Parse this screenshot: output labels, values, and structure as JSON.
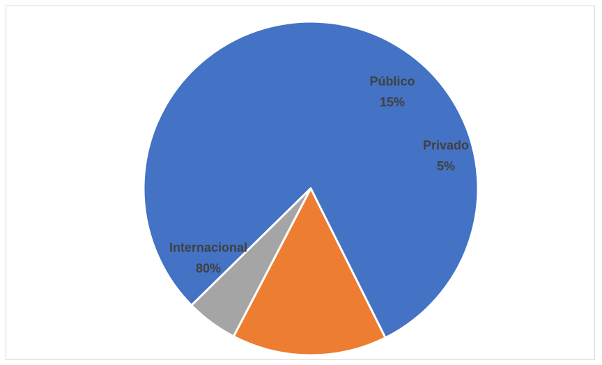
{
  "chart_data": {
    "type": "pie",
    "title": "",
    "categories": [
      "Internacional",
      "Público",
      "Privado"
    ],
    "values": [
      80,
      15,
      5
    ],
    "labels": [
      "80%",
      "15%",
      "5%"
    ],
    "colors": [
      "#4472C4",
      "#ED7D31",
      "#A5A5A5"
    ],
    "legend": "none",
    "data_labels": "category-and-percent"
  }
}
